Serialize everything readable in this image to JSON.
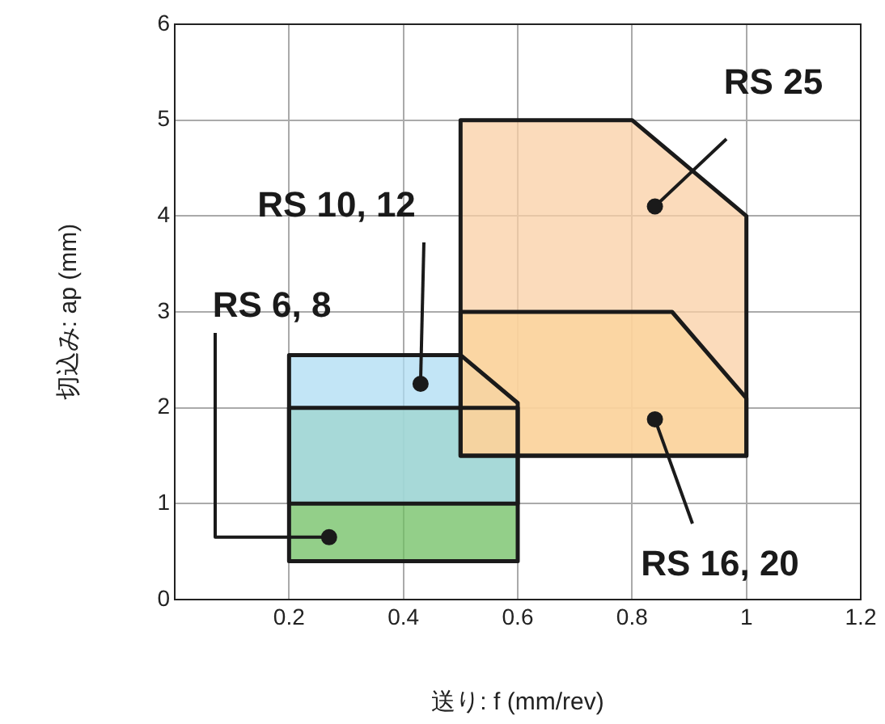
{
  "chart_data": {
    "type": "area",
    "xlabel": "送り: f (mm/rev)",
    "ylabel": "切込み: ap (mm)",
    "xlim": [
      0,
      1.2
    ],
    "xticks": [
      0.2,
      0.4,
      0.6,
      0.8,
      1,
      1.2
    ],
    "ylim": [
      0,
      6
    ],
    "yticks": [
      0,
      1,
      2,
      3,
      4,
      5,
      6
    ],
    "grid": true,
    "legend": false,
    "series": [
      {
        "color": "#f9cfa4",
        "x": [
          0.5,
          1,
          1,
          0.8,
          0.5,
          0.5
        ],
        "values": [
          1.5,
          1.5,
          4,
          5,
          5,
          1.5
        ]
      },
      {
        "color": "#fde27e",
        "x": [
          0.5,
          1,
          1,
          0.87,
          0.5,
          0.5
        ],
        "values": [
          1.5,
          1.5,
          2.1,
          3,
          3,
          1.5
        ]
      },
      {
        "color": "#aedcf3",
        "x": [
          0.2,
          0.6,
          0.6,
          0.5,
          0.2,
          0.2
        ],
        "values": [
          1,
          1,
          2.05,
          2.55,
          2.55,
          1
        ]
      },
      {
        "color": "#6fbf62",
        "x": [
          0.2,
          0.6,
          0.6,
          0.2,
          0.2
        ],
        "values": [
          0.4,
          0.4,
          2,
          2,
          0.4
        ]
      }
    ],
    "annotations": [
      {
        "text": "RS 25",
        "x": 0.84,
        "y": 4.1
      },
      {
        "text": "RS 16, 20",
        "x": 0.84,
        "y": 1.88
      },
      {
        "text": "RS 10, 12",
        "x": 0.43,
        "y": 2.25
      },
      {
        "text": "RS 6, 8",
        "x": 0.27,
        "y": 0.65
      }
    ]
  }
}
